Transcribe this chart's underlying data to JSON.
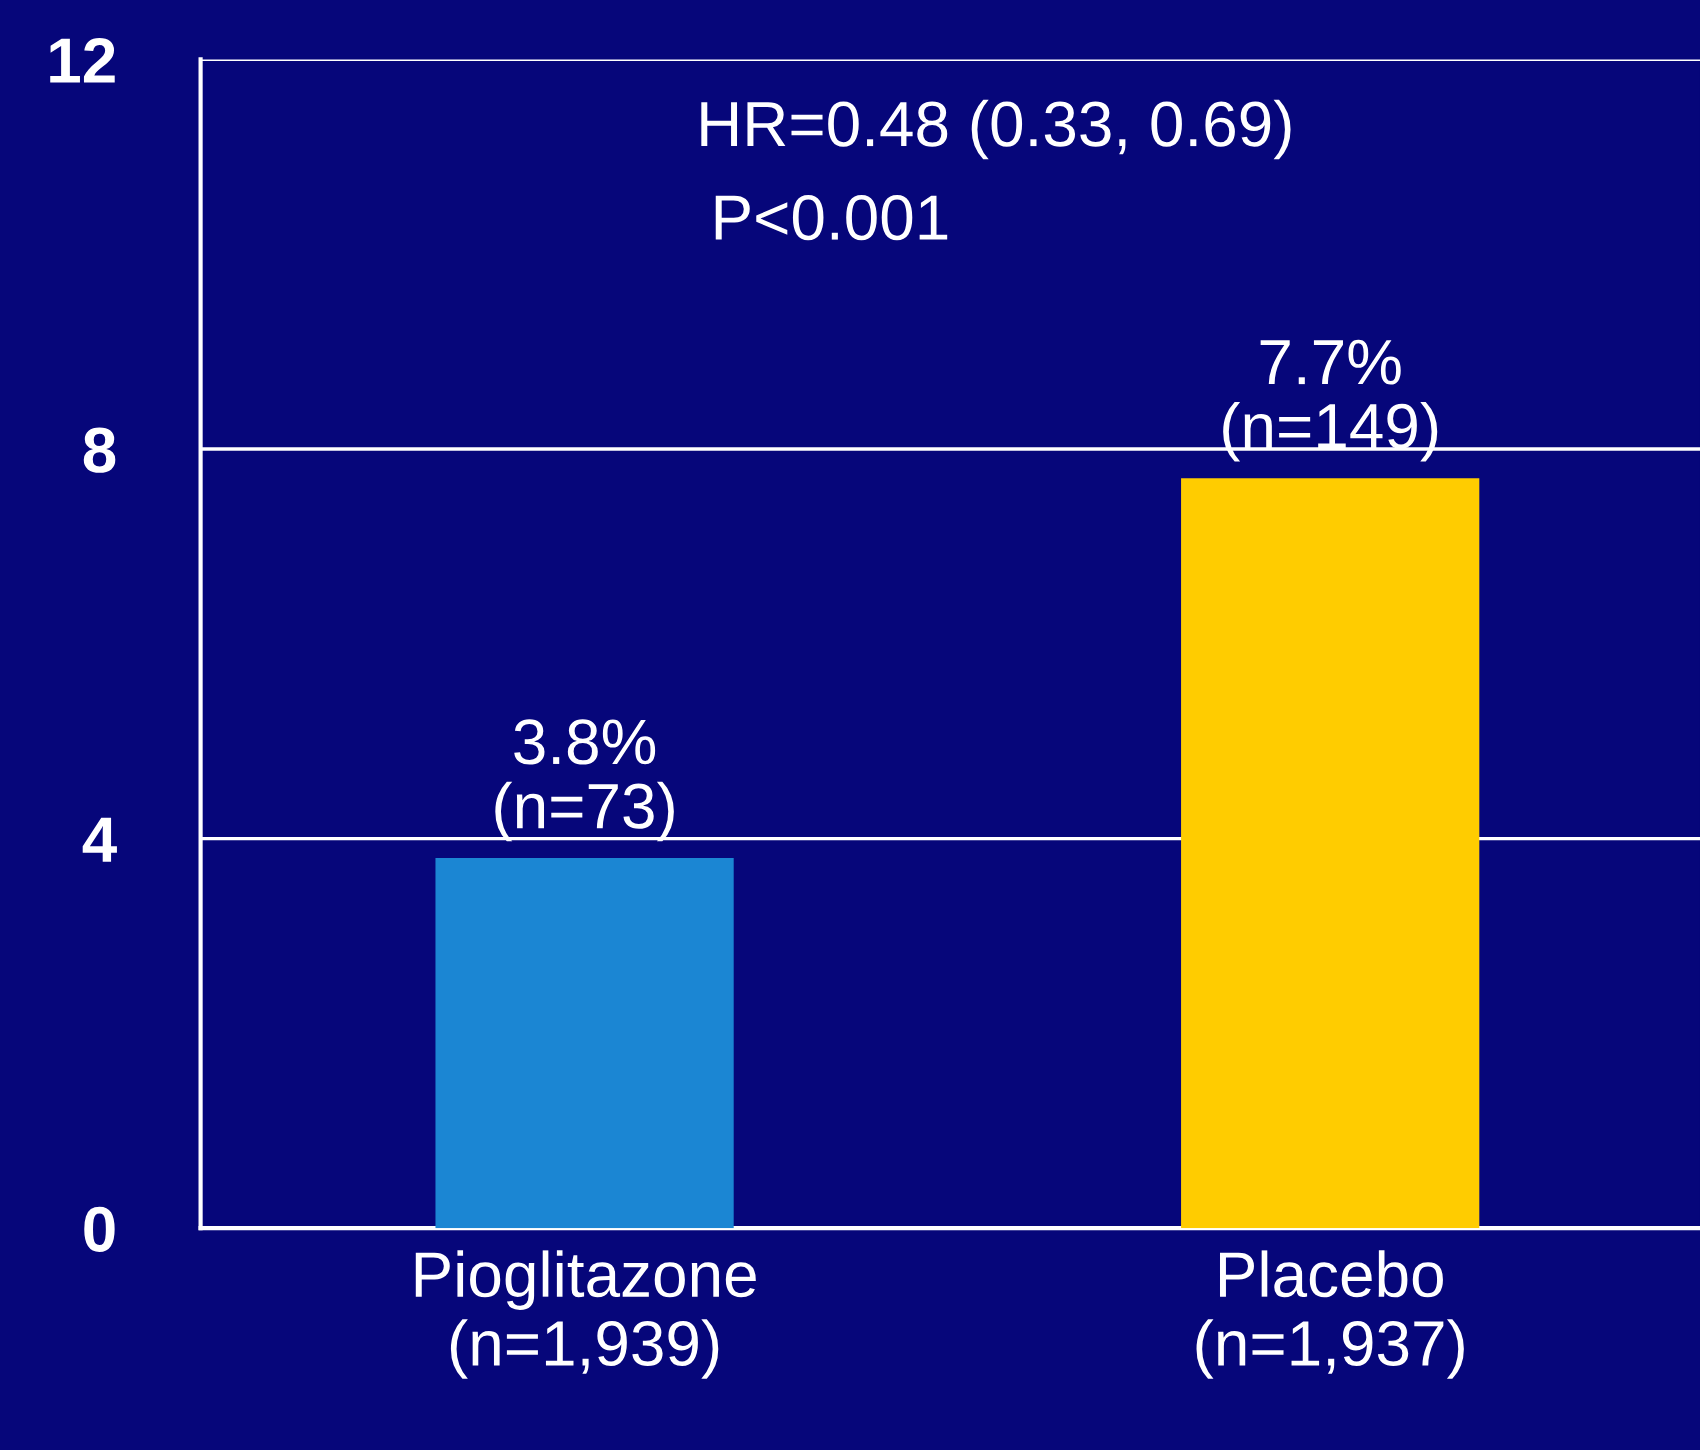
{
  "chart_data": {
    "type": "bar",
    "categories": [
      "Pioglitazone\n(n=1,939)",
      "Placebo\n(n=1,937)"
    ],
    "values": [
      3.8,
      7.7
    ],
    "colors": [
      "#1b86d3",
      "#ffcc00"
    ],
    "value_labels": [
      "3.8%\n(n=73)",
      "7.7%\n(n=149)"
    ],
    "ylim": [
      0,
      12
    ],
    "yticks": [
      0,
      4,
      8,
      12
    ],
    "grid": "y",
    "annotations": [
      "HR=0.48 (0.33, 0.69)",
      "P<0.001"
    ]
  }
}
